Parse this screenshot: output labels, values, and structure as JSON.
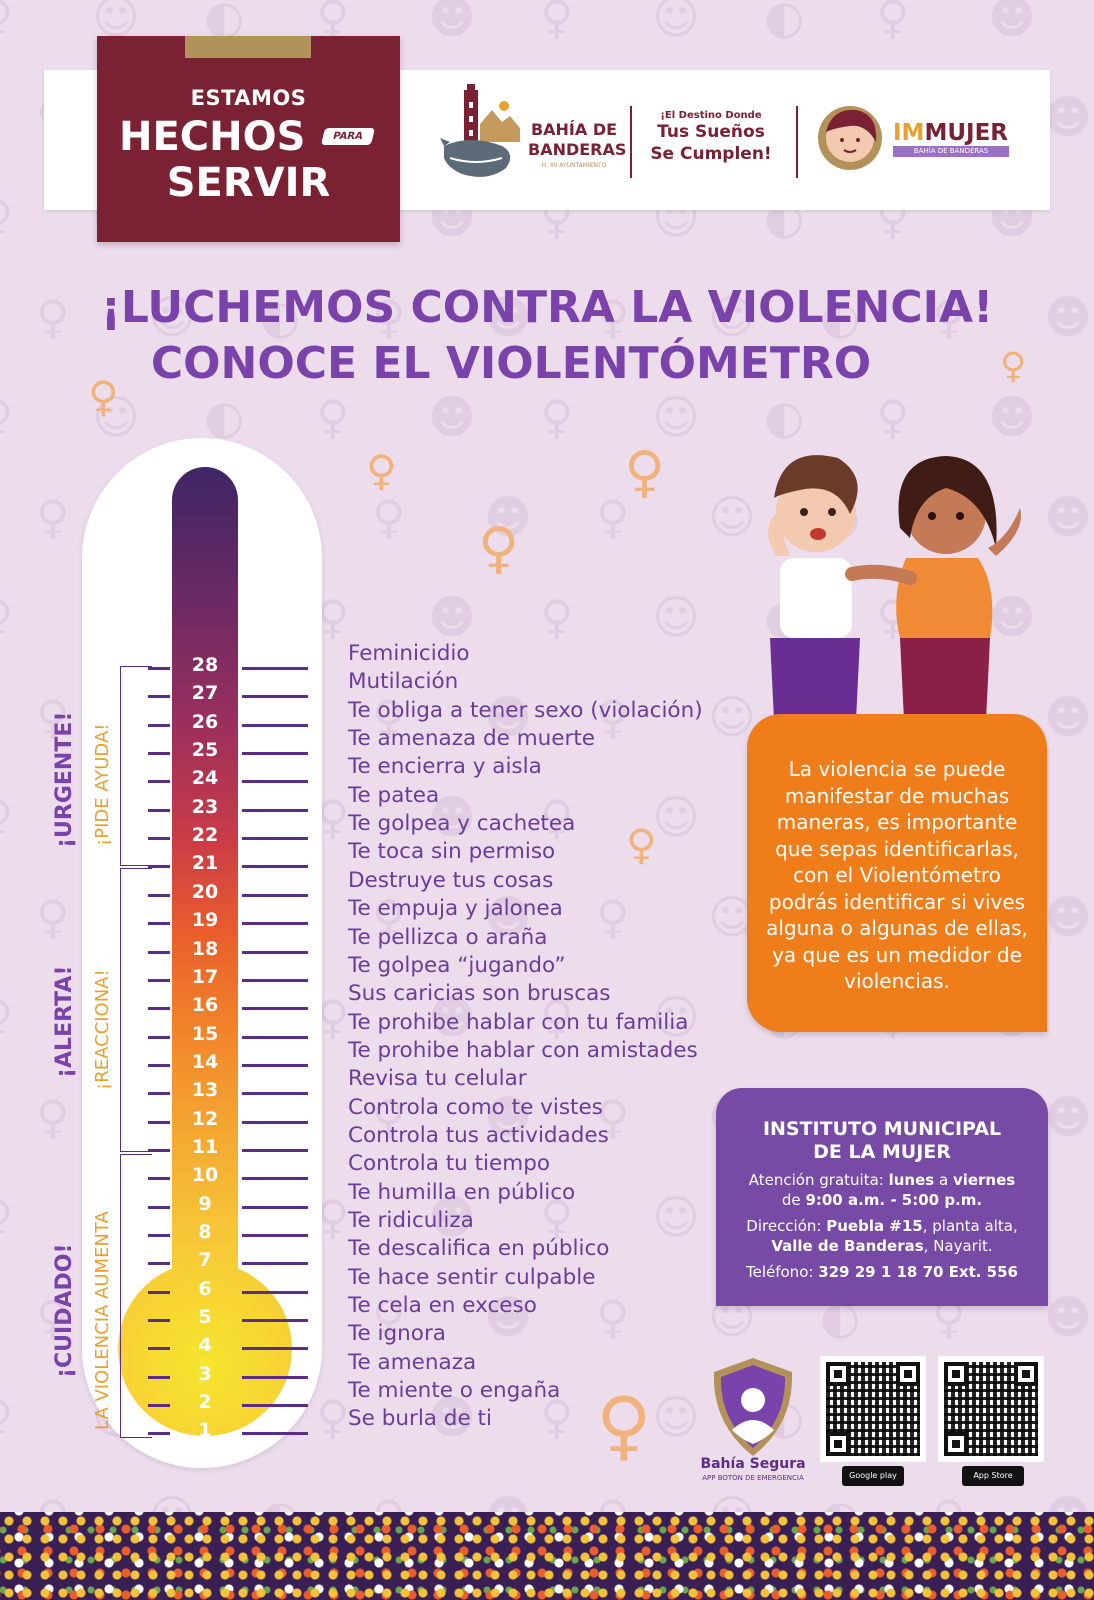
{
  "header": {
    "slogan_small": "ESTAMOS",
    "slogan_line1": "HECHOS",
    "slogan_para": "PARA",
    "slogan_line2": "SERVIR",
    "bahia_name": "BAHÍA DE BANDERAS",
    "bahia_sub": "H. XII AYUNTAMIENTO",
    "destino_small": "¡El Destino Donde",
    "destino_line1": "Tus Sueños",
    "destino_line2": "Se Cumplen!",
    "immujer_prefix": "IM",
    "immujer_main": "MUJER",
    "immujer_sub": "BAHÍA DE BANDERAS"
  },
  "title": {
    "line1": "¡LUCHEMOS CONTRA LA VIOLENCIA!",
    "line2": "CONOCE EL VIOLENTÓMETRO"
  },
  "thermometer": {
    "levels": [
      {
        "n": "28",
        "text": "Feminicidio"
      },
      {
        "n": "27",
        "text": "Mutilación"
      },
      {
        "n": "26",
        "text": "Te obliga a tener sexo (violación)"
      },
      {
        "n": "25",
        "text": "Te amenaza de muerte"
      },
      {
        "n": "24",
        "text": "Te encierra y aisla"
      },
      {
        "n": "23",
        "text": "Te patea"
      },
      {
        "n": "22",
        "text": "Te golpea y cachetea"
      },
      {
        "n": "21",
        "text": "Te toca sin permiso"
      },
      {
        "n": "20",
        "text": "Destruye tus cosas"
      },
      {
        "n": "19",
        "text": "Te empuja y jalonea"
      },
      {
        "n": "18",
        "text": "Te pellizca o araña"
      },
      {
        "n": "17",
        "text": "Te golpea “jugando”"
      },
      {
        "n": "16",
        "text": "Sus caricias son bruscas"
      },
      {
        "n": "15",
        "text": "Te prohibe hablar con tu familia"
      },
      {
        "n": "14",
        "text": "Te prohibe hablar con amistades"
      },
      {
        "n": "13",
        "text": "Revisa tu celular"
      },
      {
        "n": "12",
        "text": "Controla como te vistes"
      },
      {
        "n": "11",
        "text": "Controla tus actividades"
      },
      {
        "n": "10",
        "text": "Controla tu tiempo"
      },
      {
        "n": "9",
        "text": "Te humilla en público"
      },
      {
        "n": "8",
        "text": "Te ridiculiza"
      },
      {
        "n": "7",
        "text": "Te descalifica en público"
      },
      {
        "n": "6",
        "text": "Te hace sentir culpable"
      },
      {
        "n": "5",
        "text": "Te cela en exceso"
      },
      {
        "n": "4",
        "text": "Te ignora"
      },
      {
        "n": "3",
        "text": "Te amenaza"
      },
      {
        "n": "2",
        "text": "Te miente o engaña"
      },
      {
        "n": "1",
        "text": "Se burla de ti"
      }
    ],
    "zones": {
      "urgente": "¡URGENTE!",
      "pide_ayuda": "¡PIDE AYUDA!",
      "alerta": "¡ALERTA!",
      "reacciona": "¡REACCIONA!",
      "cuidado": "¡CUIDADO!",
      "aumenta": "LA VIOLENCIA AUMENTA"
    }
  },
  "info_box": {
    "text": "La violencia se puede manifestar de muchas maneras, es importante que sepas identificarlas, con el Violentómetro podrás identificar si vives alguna o algunas de ellas, ya que es un medidor de violencias."
  },
  "institute": {
    "title_line1": "INSTITUTO MUNICIPAL",
    "title_line2": "DE LA MUJER",
    "attention_label": "Atención gratuita: ",
    "attention_days": "lunes",
    "attention_a": " a ",
    "attention_days2": "viernes",
    "hours_de": "de ",
    "hours": "9:00 a.m. - 5:00 p.m.",
    "address_label": "Dirección: ",
    "address_street": "Puebla #15",
    "address_rest": ", planta alta,",
    "address_city": "Valle de Banderas",
    "address_state": ", Nayarit.",
    "phone_label": "Teléfono: ",
    "phone": "329 29 1 18 70 Ext. 556"
  },
  "app": {
    "name": "Bahía Segura",
    "subtitle": "APP BOTÓN DE EMERGENCIA",
    "google_play": "Google play",
    "app_store": "App Store"
  },
  "colors": {
    "background": "#ecdcec",
    "purple": "#7a43ac",
    "maroon": "#7b2134",
    "orange": "#ef7d1a",
    "gold": "#e8a02e"
  }
}
